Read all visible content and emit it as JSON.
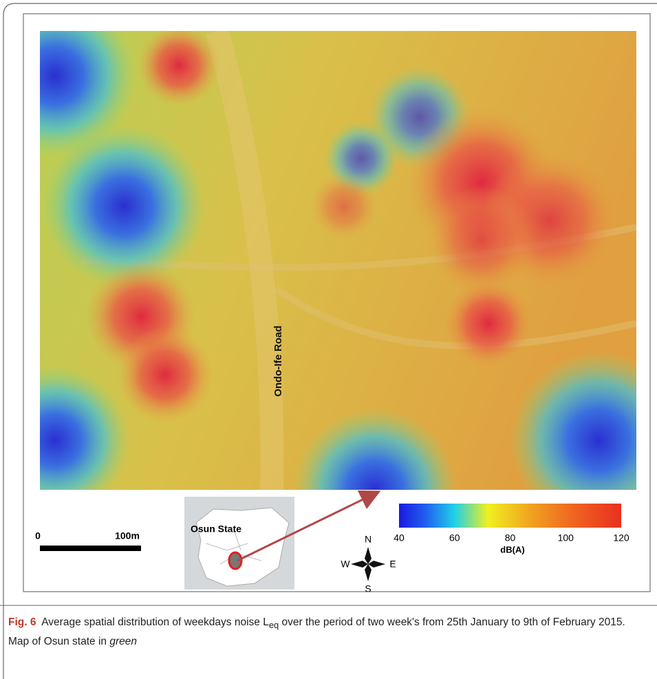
{
  "figure": {
    "road_label": "Ondo-Ife Road",
    "scale_bar": {
      "start": "0",
      "end": "100m"
    },
    "inset": {
      "label": "Osun State"
    },
    "compass": {
      "north": "N",
      "east": "E",
      "south": "S",
      "west": "W"
    },
    "colorbar": {
      "lim": [
        40,
        120
      ],
      "ticks": [
        40,
        60,
        80,
        100,
        120
      ],
      "label": "dB(A)"
    },
    "caption": {
      "label": "Fig. 6",
      "text_before": "Average spatial distribution of weekdays noise L",
      "subscript": "eq",
      "text_after": " over the period of two week's from 25th January to 9th of February 2015. Map of Osun state in ",
      "emphasis": "green"
    }
  }
}
